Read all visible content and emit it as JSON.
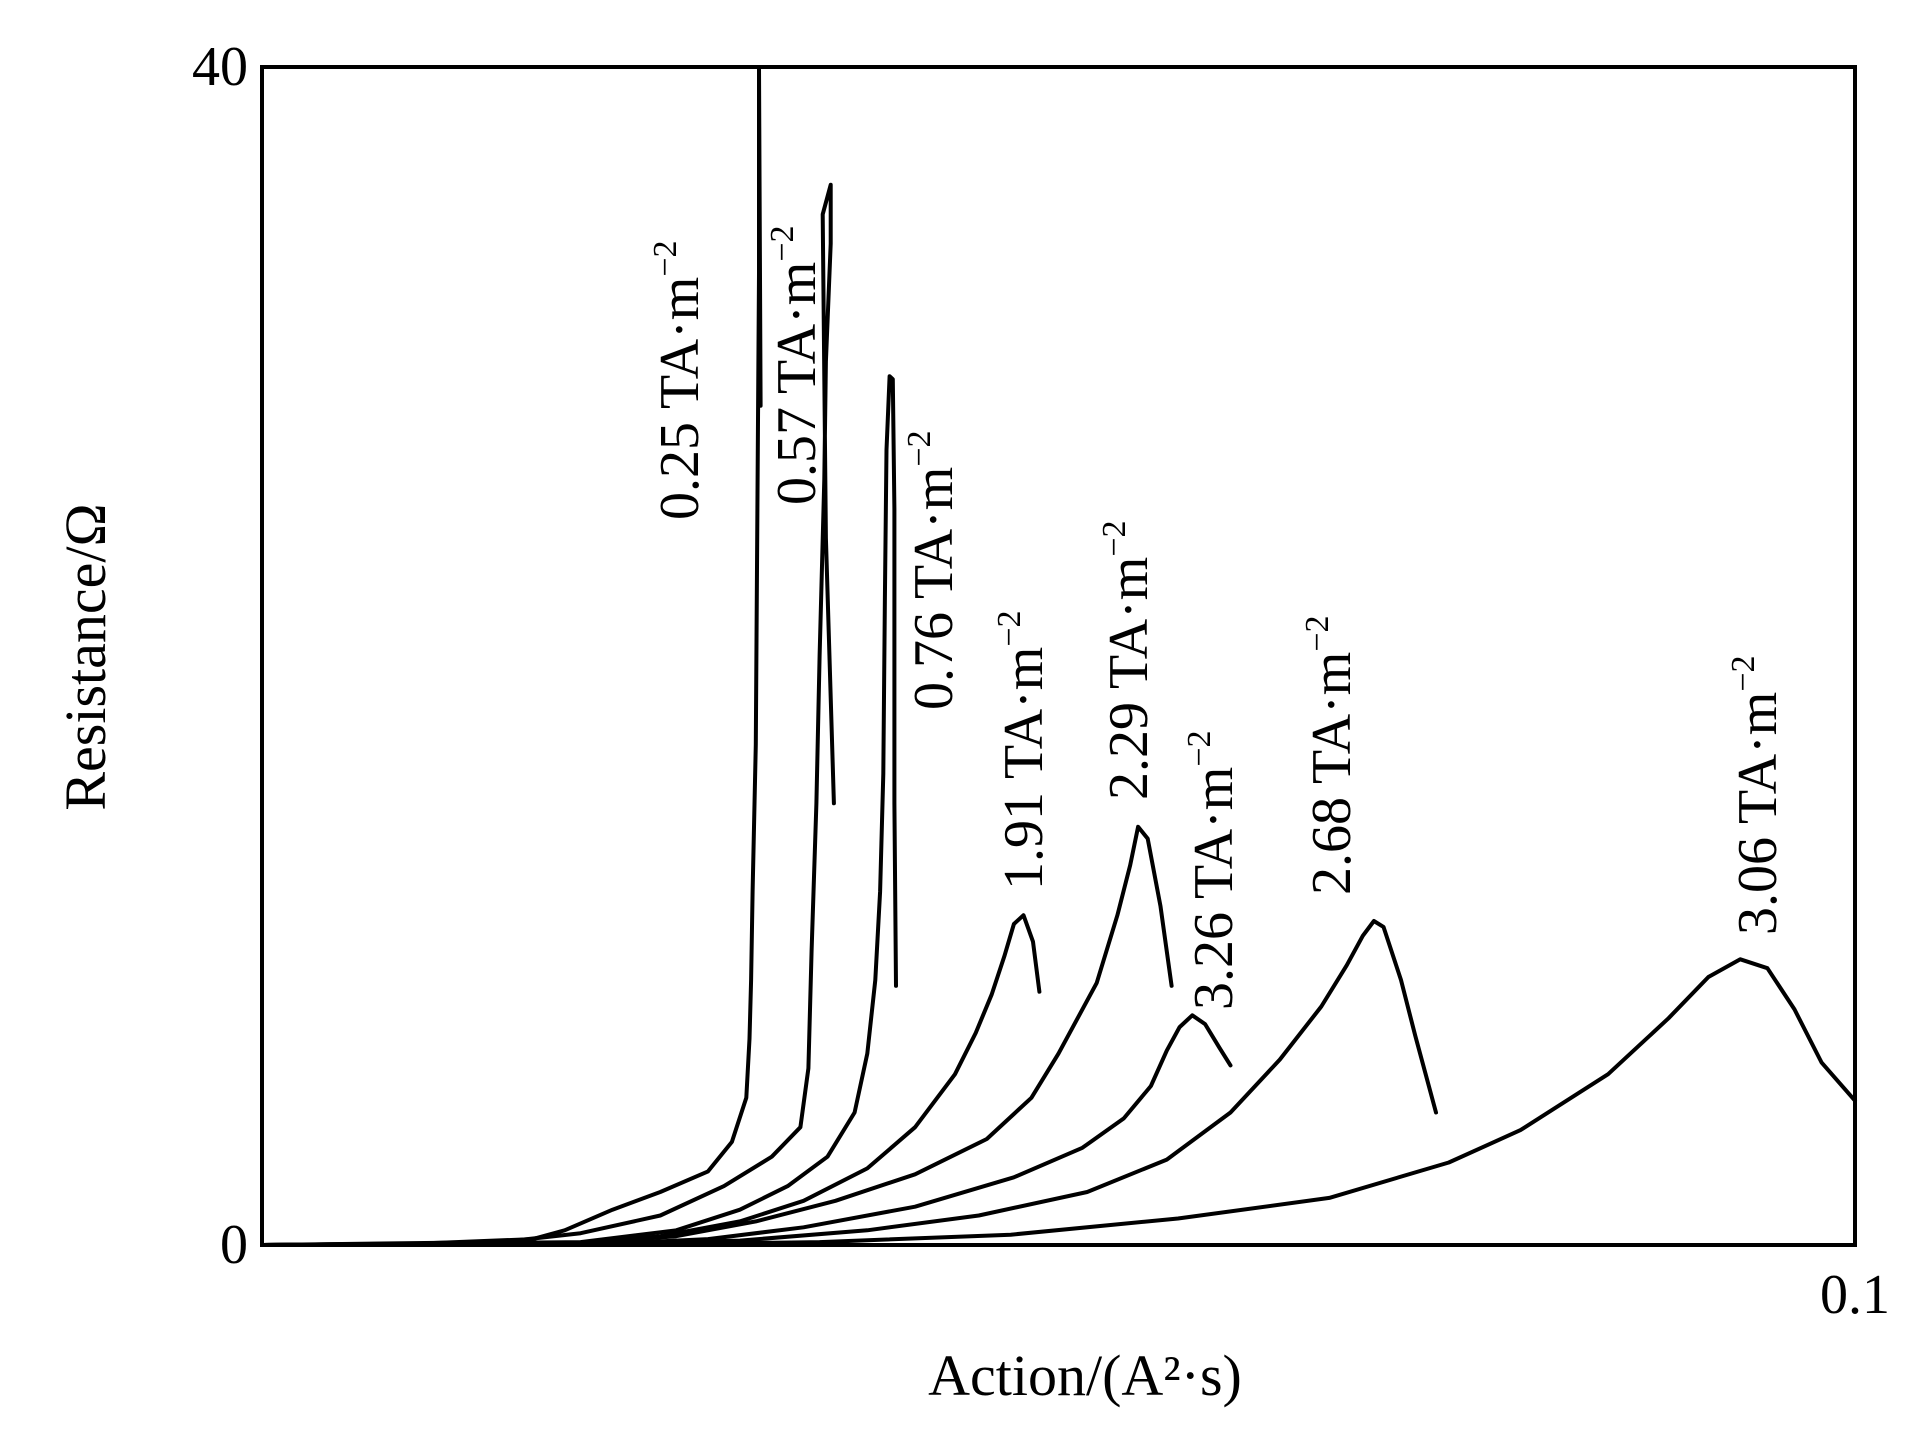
{
  "chart_data": {
    "type": "line",
    "title": "",
    "xlabel": "Action/(A²·s)",
    "ylabel": "Resistance/Ω",
    "xlim": [
      0,
      0.1
    ],
    "ylim": [
      0,
      40
    ],
    "x_ticks": [
      {
        "value": 0,
        "label": ""
      },
      {
        "value": 0.1,
        "label": "0.1"
      }
    ],
    "y_ticks": [
      {
        "value": 0,
        "label": "0"
      },
      {
        "value": 40,
        "label": "40"
      }
    ],
    "grid": false,
    "legend": "none",
    "line_color": "#000000",
    "series": [
      {
        "name": "0.25 TA·m⁻²",
        "points": [
          [
            0,
            0
          ],
          [
            0.01,
            0.05
          ],
          [
            0.017,
            0.2
          ],
          [
            0.019,
            0.5
          ],
          [
            0.022,
            1.2
          ],
          [
            0.025,
            1.8
          ],
          [
            0.028,
            2.5
          ],
          [
            0.0295,
            3.5
          ],
          [
            0.0304,
            5
          ],
          [
            0.0306,
            7
          ],
          [
            0.0307,
            9
          ],
          [
            0.0308,
            12
          ],
          [
            0.031,
            17
          ],
          [
            0.0311,
            25
          ],
          [
            0.0312,
            33
          ],
          [
            0.0312,
            40
          ],
          [
            0.0313,
            28.5
          ]
        ]
      },
      {
        "name": "0.57 TA·m⁻²",
        "points": [
          [
            0,
            0
          ],
          [
            0.015,
            0.1
          ],
          [
            0.02,
            0.4
          ],
          [
            0.025,
            1
          ],
          [
            0.029,
            2
          ],
          [
            0.032,
            3
          ],
          [
            0.0338,
            4
          ],
          [
            0.0343,
            6
          ],
          [
            0.0345,
            10
          ],
          [
            0.0348,
            15
          ],
          [
            0.035,
            20
          ],
          [
            0.0353,
            26
          ],
          [
            0.0354,
            30
          ],
          [
            0.0357,
            34
          ],
          [
            0.0357,
            36
          ],
          [
            0.0352,
            35
          ],
          [
            0.0354,
            24
          ],
          [
            0.0359,
            15
          ]
        ]
      },
      {
        "name": "0.76 TA·m⁻²",
        "points": [
          [
            0,
            0
          ],
          [
            0.02,
            0.1
          ],
          [
            0.026,
            0.5
          ],
          [
            0.03,
            1.2
          ],
          [
            0.033,
            2
          ],
          [
            0.0355,
            3
          ],
          [
            0.0372,
            4.5
          ],
          [
            0.038,
            6.5
          ],
          [
            0.0385,
            9
          ],
          [
            0.0388,
            12
          ],
          [
            0.039,
            16
          ],
          [
            0.0391,
            22
          ],
          [
            0.0392,
            27
          ],
          [
            0.0394,
            29.5
          ],
          [
            0.0396,
            29.4
          ],
          [
            0.0397,
            25
          ],
          [
            0.0397,
            15
          ],
          [
            0.0398,
            8.8
          ]
        ]
      },
      {
        "name": "1.91 TA·m⁻²",
        "points": [
          [
            0,
            0
          ],
          [
            0.02,
            0.05
          ],
          [
            0.025,
            0.3
          ],
          [
            0.03,
            0.8
          ],
          [
            0.034,
            1.5
          ],
          [
            0.038,
            2.6
          ],
          [
            0.041,
            4
          ],
          [
            0.0435,
            5.8
          ],
          [
            0.0448,
            7.2
          ],
          [
            0.0458,
            8.5
          ],
          [
            0.0466,
            9.8
          ],
          [
            0.0472,
            10.9
          ],
          [
            0.0478,
            11.2
          ],
          [
            0.0484,
            10.3
          ],
          [
            0.0488,
            8.6
          ]
        ]
      },
      {
        "name": "2.29 TA·m⁻²",
        "points": [
          [
            0,
            0
          ],
          [
            0.02,
            0.05
          ],
          [
            0.026,
            0.3
          ],
          [
            0.031,
            0.8
          ],
          [
            0.036,
            1.5
          ],
          [
            0.041,
            2.4
          ],
          [
            0.0455,
            3.6
          ],
          [
            0.0483,
            5
          ],
          [
            0.05,
            6.5
          ],
          [
            0.0524,
            8.9
          ],
          [
            0.0537,
            11.2
          ],
          [
            0.0545,
            12.9
          ],
          [
            0.055,
            14.2
          ],
          [
            0.0556,
            13.8
          ],
          [
            0.0564,
            11.5
          ],
          [
            0.0571,
            8.8
          ]
        ]
      },
      {
        "name": "3.26 TA·m⁻²",
        "points": [
          [
            0,
            0
          ],
          [
            0.022,
            0.05
          ],
          [
            0.028,
            0.2
          ],
          [
            0.034,
            0.6
          ],
          [
            0.041,
            1.3
          ],
          [
            0.0472,
            2.3
          ],
          [
            0.0515,
            3.3
          ],
          [
            0.0541,
            4.3
          ],
          [
            0.0558,
            5.4
          ],
          [
            0.0568,
            6.6
          ],
          [
            0.0576,
            7.4
          ],
          [
            0.0584,
            7.8
          ],
          [
            0.0592,
            7.5
          ],
          [
            0.0601,
            6.7
          ],
          [
            0.0608,
            6.1
          ]
        ]
      },
      {
        "name": "2.68 TA·m⁻²",
        "points": [
          [
            0,
            0
          ],
          [
            0.022,
            0.05
          ],
          [
            0.03,
            0.15
          ],
          [
            0.038,
            0.5
          ],
          [
            0.045,
            1
          ],
          [
            0.0518,
            1.8
          ],
          [
            0.0568,
            2.9
          ],
          [
            0.0608,
            4.5
          ],
          [
            0.0639,
            6.3
          ],
          [
            0.0665,
            8.1
          ],
          [
            0.0681,
            9.5
          ],
          [
            0.0691,
            10.5
          ],
          [
            0.0698,
            11
          ],
          [
            0.0704,
            10.8
          ],
          [
            0.0715,
            9
          ],
          [
            0.0724,
            7.1
          ],
          [
            0.0737,
            4.5
          ]
        ]
      },
      {
        "name": "3.06 TA·m⁻²",
        "points": [
          [
            0,
            0
          ],
          [
            0.025,
            0.03
          ],
          [
            0.035,
            0.1
          ],
          [
            0.047,
            0.35
          ],
          [
            0.0575,
            0.9
          ],
          [
            0.067,
            1.6
          ],
          [
            0.0745,
            2.8
          ],
          [
            0.079,
            3.9
          ],
          [
            0.0845,
            5.8
          ],
          [
            0.0883,
            7.7
          ],
          [
            0.0908,
            9.1
          ],
          [
            0.0928,
            9.7
          ],
          [
            0.0945,
            9.4
          ],
          [
            0.0962,
            8
          ],
          [
            0.0979,
            6.2
          ],
          [
            0.1,
            4.9
          ]
        ]
      }
    ],
    "annotations": [
      {
        "series": 0,
        "num": "0.25 TA",
        "sep": "·",
        "unit": "m",
        "exp": "−2"
      },
      {
        "series": 1,
        "num": "0.57 TA",
        "sep": "·",
        "unit": "m",
        "exp": "−2"
      },
      {
        "series": 2,
        "num": "0.76 TA",
        "sep": "·",
        "unit": "m",
        "exp": "−2"
      },
      {
        "series": 3,
        "num": "1.91 TA",
        "sep": "·",
        "unit": "m",
        "exp": "−2"
      },
      {
        "series": 4,
        "num": "2.29 TA",
        "sep": "·",
        "unit": "m",
        "exp": "−2"
      },
      {
        "series": 5,
        "num": "3.26 TA",
        "sep": "·",
        "unit": "m",
        "exp": "−2"
      },
      {
        "series": 6,
        "num": "2.68 TA",
        "sep": "·",
        "unit": "m",
        "exp": "−2"
      },
      {
        "series": 7,
        "num": "3.06 TA",
        "sep": "·",
        "unit": "m",
        "exp": "−2"
      }
    ]
  }
}
